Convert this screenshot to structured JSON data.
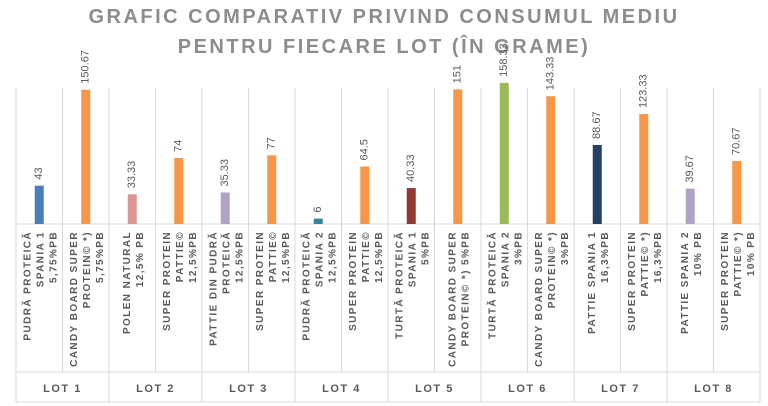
{
  "chart_data": {
    "type": "bar",
    "title": [
      "GRAFIC COMPARATIV PRIVIND CONSUMUL MEDIU",
      "PENTRU FIECARE LOT (ÎN GRAME)"
    ],
    "ylim": [
      0,
      175
    ],
    "grid": false,
    "legend": "none",
    "groups": [
      {
        "name": "LOT 1",
        "bars": [
          {
            "label": [
              "PUDRĂ PROTEICĂ",
              "SPANIA 1",
              "5,75%PB"
            ],
            "value": 43,
            "value_label": "43",
            "color": "#4a7ebb"
          },
          {
            "label": [
              "CANDY BOARD SUPER",
              "PROTEIN© *)",
              "5,75%PB"
            ],
            "value": 150.67,
            "value_label": "150.67",
            "color": "#f79646"
          }
        ]
      },
      {
        "name": "LOT 2",
        "bars": [
          {
            "label": [
              "POLEN NATURAL",
              "12,5% PB"
            ],
            "value": 33.33,
            "value_label": "33.33",
            "color": "#d99694"
          },
          {
            "label": [
              "SUPER PROTEIN",
              "PATTIE©",
              "12,5%PB"
            ],
            "value": 74,
            "value_label": "74",
            "color": "#f79646"
          }
        ]
      },
      {
        "name": "LOT 3",
        "bars": [
          {
            "label": [
              "PATTIE DIN PUDRĂ",
              "PROTEICĂ",
              "12,5%PB"
            ],
            "value": 35.33,
            "value_label": "35.33",
            "color": "#b3a2c7"
          },
          {
            "label": [
              "SUPER PROTEIN",
              "PATTIE©",
              "12,5%PB"
            ],
            "value": 77,
            "value_label": "77",
            "color": "#f79646"
          }
        ]
      },
      {
        "name": "LOT 4",
        "bars": [
          {
            "label": [
              "PUDRĂ PROTEICĂ",
              "SPANIA 2",
              "12,5%PB"
            ],
            "value": 6,
            "value_label": "6",
            "color": "#31859c"
          },
          {
            "label": [
              "SUPER PROTEIN",
              "PATTIE©",
              "12,5%PB"
            ],
            "value": 64.5,
            "value_label": "64.5",
            "color": "#f79646"
          }
        ]
      },
      {
        "name": "LOT 5",
        "bars": [
          {
            "label": [
              "TURTĂ PROTEICĂ",
              "SPANIA 1",
              "5%PB"
            ],
            "value": 40.33,
            "value_label": "40.33",
            "color": "#953735"
          },
          {
            "label": [
              "CANDY BOARD SUPER",
              "PROTEIN© *) 5%PB"
            ],
            "value": 151,
            "value_label": "151",
            "color": "#f79646"
          }
        ]
      },
      {
        "name": "LOT 6",
        "bars": [
          {
            "label": [
              "TURTĂ PROTEICĂ",
              "SPANIA 2",
              "3%PB"
            ],
            "value": 158.33,
            "value_label": "158.33",
            "color": "#9bbb59"
          },
          {
            "label": [
              "CANDY BOARD SUPER",
              "PROTEIN© *)",
              "3%PB"
            ],
            "value": 143.33,
            "value_label": "143.33",
            "color": "#f79646"
          }
        ]
      },
      {
        "name": "LOT 7",
        "bars": [
          {
            "label": [
              "PATTIE SPANIA 1",
              "16,3%PB"
            ],
            "value": 88.67,
            "value_label": "88.67",
            "color": "#254061"
          },
          {
            "label": [
              "SUPER PROTEIN",
              "PATTIE© *)",
              "16,3%PB"
            ],
            "value": 123.33,
            "value_label": "123.33",
            "color": "#f79646"
          }
        ]
      },
      {
        "name": "LOT 8",
        "bars": [
          {
            "label": [
              "PATTIE SPANIA 2",
              "10% PB"
            ],
            "value": 39.67,
            "value_label": "39.67",
            "color": "#b3a2c7"
          },
          {
            "label": [
              "SUPER PROTEIN",
              "PATTIE© *)",
              "10% PB"
            ],
            "value": 70.67,
            "value_label": "70.67",
            "color": "#f79646"
          }
        ]
      }
    ]
  }
}
